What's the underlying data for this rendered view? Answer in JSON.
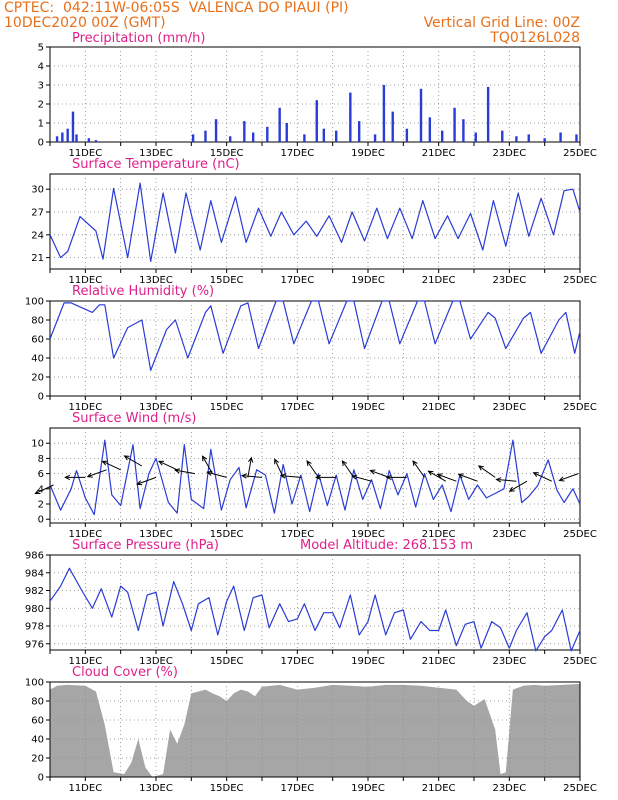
{
  "header": {
    "line1_left": "CPTEC:  042:11W-06:05S  VALENCA DO PIAUI (PI)",
    "line2_left": "10DEC2020 00Z (GMT)",
    "line2_right": "Vertical Grid Line: 00Z",
    "line3_right": "TQ0126L028"
  },
  "x_dates": [
    "11DEC",
    "13DEC",
    "15DEC",
    "17DEC",
    "19DEC",
    "21DEC",
    "23DEC",
    "25DEC"
  ],
  "x_range_days": [
    0,
    15
  ],
  "colors": {
    "header": "#e8701a",
    "title": "#e0208a",
    "line": "#2a3cd6",
    "bar": "#2a3cd6",
    "cloud": "#a6a6a6"
  },
  "chart_data": [
    {
      "type": "bar",
      "title": "Precipitation (mm/h)",
      "ylim": [
        0,
        5
      ],
      "yticks": [
        "0",
        "1",
        "2",
        "3",
        "4",
        "5"
      ],
      "events": [
        {
          "day": 0.2,
          "v": 0.3
        },
        {
          "day": 0.35,
          "v": 0.5
        },
        {
          "day": 0.5,
          "v": 0.7
        },
        {
          "day": 0.65,
          "v": 1.6
        },
        {
          "day": 0.75,
          "v": 0.4
        },
        {
          "day": 1.1,
          "v": 0.2
        },
        {
          "day": 1.3,
          "v": 0.1
        },
        {
          "day": 4.05,
          "v": 0.4
        },
        {
          "day": 4.4,
          "v": 0.6
        },
        {
          "day": 4.7,
          "v": 1.2
        },
        {
          "day": 5.1,
          "v": 0.3
        },
        {
          "day": 5.5,
          "v": 1.1
        },
        {
          "day": 5.75,
          "v": 0.5
        },
        {
          "day": 6.15,
          "v": 0.8
        },
        {
          "day": 6.5,
          "v": 1.8
        },
        {
          "day": 6.7,
          "v": 1.0
        },
        {
          "day": 7.2,
          "v": 0.4
        },
        {
          "day": 7.55,
          "v": 2.2
        },
        {
          "day": 7.75,
          "v": 0.7
        },
        {
          "day": 8.1,
          "v": 0.6
        },
        {
          "day": 8.5,
          "v": 2.6
        },
        {
          "day": 8.75,
          "v": 1.1
        },
        {
          "day": 9.2,
          "v": 0.4
        },
        {
          "day": 9.45,
          "v": 3.0
        },
        {
          "day": 9.7,
          "v": 1.6
        },
        {
          "day": 10.1,
          "v": 0.7
        },
        {
          "day": 10.5,
          "v": 2.8
        },
        {
          "day": 10.75,
          "v": 1.3
        },
        {
          "day": 11.1,
          "v": 0.6
        },
        {
          "day": 11.45,
          "v": 1.8
        },
        {
          "day": 11.7,
          "v": 1.2
        },
        {
          "day": 12.05,
          "v": 0.5
        },
        {
          "day": 12.4,
          "v": 2.9
        },
        {
          "day": 12.8,
          "v": 0.6
        },
        {
          "day": 13.2,
          "v": 0.3
        },
        {
          "day": 13.55,
          "v": 0.4
        },
        {
          "day": 14.0,
          "v": 0.2
        },
        {
          "day": 14.45,
          "v": 0.5
        },
        {
          "day": 14.9,
          "v": 0.4
        }
      ]
    },
    {
      "type": "line",
      "title": "Surface Temperature (nC)",
      "ylim": [
        19.5,
        32
      ],
      "yticks": [
        "21",
        "24",
        "27",
        "30"
      ],
      "ytick_values": [
        21,
        24,
        27,
        30
      ],
      "x": [
        0,
        0.3,
        0.5,
        0.85,
        1.3,
        1.5,
        1.8,
        2.2,
        2.55,
        2.85,
        3.2,
        3.55,
        3.85,
        4.25,
        4.55,
        4.85,
        5.25,
        5.55,
        5.9,
        6.25,
        6.55,
        6.9,
        7.25,
        7.55,
        7.9,
        8.25,
        8.55,
        8.9,
        9.25,
        9.55,
        9.9,
        10.25,
        10.55,
        10.9,
        11.25,
        11.55,
        11.9,
        12.25,
        12.55,
        12.9,
        13.25,
        13.55,
        13.9,
        14.25,
        14.55,
        14.8,
        15
      ],
      "y": [
        24,
        21,
        21.8,
        26.4,
        24.5,
        20.8,
        30.1,
        21,
        30.8,
        20.5,
        29.5,
        21.6,
        29.5,
        22,
        28.5,
        23,
        29,
        23,
        27.5,
        23.8,
        27,
        24,
        25.8,
        23.8,
        26.5,
        23,
        27,
        23.2,
        27.5,
        23.5,
        27.5,
        23.5,
        28.5,
        23.5,
        26.5,
        23.5,
        26.8,
        22,
        28.5,
        22.5,
        29.5,
        23.8,
        28.8,
        24,
        29.8,
        30,
        27
      ]
    },
    {
      "type": "line",
      "title": "Relative Humidity (%)",
      "ylim": [
        0,
        100
      ],
      "yticks": [
        "0",
        "20",
        "40",
        "60",
        "80",
        "100"
      ],
      "ytick_values": [
        0,
        20,
        40,
        60,
        80,
        100
      ],
      "x": [
        0,
        0.4,
        0.6,
        1.2,
        1.4,
        1.55,
        1.8,
        2.2,
        2.6,
        2.85,
        3.3,
        3.55,
        3.9,
        4.4,
        4.55,
        4.9,
        5.4,
        5.6,
        5.9,
        6.4,
        6.6,
        6.9,
        7.4,
        7.6,
        7.9,
        8.4,
        8.6,
        8.9,
        9.4,
        9.6,
        9.9,
        10.4,
        10.6,
        10.9,
        11.4,
        11.6,
        11.9,
        12.4,
        12.6,
        12.9,
        13.4,
        13.6,
        13.9,
        14.4,
        14.6,
        14.85,
        15
      ],
      "y": [
        60,
        98,
        98,
        88,
        96,
        96,
        40,
        72,
        80,
        27,
        70,
        80,
        40,
        88,
        95,
        45,
        95,
        98,
        50,
        100,
        100,
        55,
        100,
        100,
        55,
        100,
        100,
        50,
        100,
        100,
        55,
        100,
        100,
        55,
        100,
        100,
        60,
        88,
        82,
        50,
        82,
        88,
        45,
        80,
        88,
        45,
        68
      ]
    },
    {
      "type": "line",
      "title": "Surface Wind (m/s)",
      "ylim": [
        -0.5,
        12
      ],
      "yticks": [
        "0",
        "2",
        "4",
        "6",
        "8",
        "10"
      ],
      "ytick_values": [
        0,
        2,
        4,
        6,
        8,
        10
      ],
      "x": [
        0,
        0.3,
        0.6,
        0.75,
        1.0,
        1.25,
        1.55,
        1.75,
        2.0,
        2.35,
        2.55,
        2.8,
        3.0,
        3.35,
        3.6,
        3.8,
        4.0,
        4.35,
        4.55,
        4.85,
        5.1,
        5.35,
        5.55,
        5.85,
        6.1,
        6.35,
        6.6,
        6.85,
        7.1,
        7.35,
        7.6,
        7.85,
        8.1,
        8.35,
        8.6,
        8.85,
        9.1,
        9.35,
        9.6,
        9.85,
        10.1,
        10.35,
        10.6,
        10.85,
        11.1,
        11.35,
        11.6,
        11.85,
        12.1,
        12.35,
        12.6,
        12.85,
        13.1,
        13.35,
        13.55,
        13.8,
        14.1,
        14.35,
        14.55,
        14.8,
        15
      ],
      "y": [
        4.5,
        1.2,
        4,
        6.4,
        2.8,
        0.6,
        10.4,
        3.2,
        1.8,
        9.8,
        1.4,
        6,
        8,
        2.2,
        0.8,
        9.8,
        2.6,
        1.4,
        9.2,
        1.2,
        5.2,
        6.8,
        1.5,
        6.5,
        5.8,
        0.8,
        7.2,
        2.0,
        5.8,
        1.0,
        6.0,
        1.8,
        5.8,
        1.2,
        6.5,
        2.6,
        5.2,
        1.4,
        6.4,
        3.2,
        6.0,
        1.6,
        6.0,
        2.6,
        4.5,
        1.0,
        5.8,
        2.6,
        4.5,
        2.8,
        3.4,
        4.0,
        10.4,
        2.2,
        3.0,
        4.4,
        7.8,
        3.8,
        2.2,
        4.0,
        2.0
      ],
      "wind_vectors": [
        {
          "day": 0.1,
          "speed": 4.5,
          "dir_deg": 205
        },
        {
          "day": 1.0,
          "speed": 5.5,
          "dir_deg": 180
        },
        {
          "day": 1.6,
          "speed": 6.5,
          "dir_deg": 200
        },
        {
          "day": 2.0,
          "speed": 6.5,
          "dir_deg": 155
        },
        {
          "day": 2.6,
          "speed": 7,
          "dir_deg": 150
        },
        {
          "day": 3.0,
          "speed": 5.5,
          "dir_deg": 200
        },
        {
          "day": 3.6,
          "speed": 6.5,
          "dir_deg": 155
        },
        {
          "day": 4.1,
          "speed": 6,
          "dir_deg": 170
        },
        {
          "day": 4.6,
          "speed": 6,
          "dir_deg": 120
        },
        {
          "day": 5.0,
          "speed": 5.5,
          "dir_deg": 165
        },
        {
          "day": 5.6,
          "speed": 5.5,
          "dir_deg": 80
        },
        {
          "day": 6.0,
          "speed": 5.5,
          "dir_deg": 175
        },
        {
          "day": 6.6,
          "speed": 5.5,
          "dir_deg": 115
        },
        {
          "day": 7.1,
          "speed": 5.5,
          "dir_deg": 175
        },
        {
          "day": 7.6,
          "speed": 5.5,
          "dir_deg": 125
        },
        {
          "day": 8.1,
          "speed": 5.5,
          "dir_deg": 180
        },
        {
          "day": 8.6,
          "speed": 5.5,
          "dir_deg": 125
        },
        {
          "day": 9.1,
          "speed": 5,
          "dir_deg": 165
        },
        {
          "day": 9.6,
          "speed": 5.5,
          "dir_deg": 160
        },
        {
          "day": 10.1,
          "speed": 5.5,
          "dir_deg": 180
        },
        {
          "day": 10.6,
          "speed": 5.5,
          "dir_deg": 125
        },
        {
          "day": 11.2,
          "speed": 5,
          "dir_deg": 150
        },
        {
          "day": 11.5,
          "speed": 5,
          "dir_deg": 160
        },
        {
          "day": 12.1,
          "speed": 5,
          "dir_deg": 160
        },
        {
          "day": 12.6,
          "speed": 5.5,
          "dir_deg": 145
        },
        {
          "day": 13.2,
          "speed": 5,
          "dir_deg": 175
        },
        {
          "day": 13.5,
          "speed": 5,
          "dir_deg": 210
        },
        {
          "day": 14.2,
          "speed": 5,
          "dir_deg": 155
        },
        {
          "day": 14.95,
          "speed": 6,
          "dir_deg": 200
        }
      ]
    },
    {
      "type": "line",
      "title": "Surface Pressure (hPa)",
      "subtitle": "Model Altitude: 268.153 m",
      "ylim": [
        975.3,
        986
      ],
      "yticks": [
        "976",
        "978",
        "980",
        "982",
        "984",
        "986"
      ],
      "ytick_values": [
        976,
        978,
        980,
        982,
        984,
        986
      ],
      "x": [
        0,
        0.3,
        0.55,
        0.9,
        1.2,
        1.45,
        1.75,
        2.0,
        2.2,
        2.5,
        2.75,
        3.0,
        3.2,
        3.5,
        3.75,
        4.0,
        4.2,
        4.5,
        4.75,
        5.0,
        5.2,
        5.5,
        5.75,
        6.0,
        6.2,
        6.5,
        6.75,
        7.0,
        7.2,
        7.5,
        7.75,
        8.0,
        8.2,
        8.5,
        8.75,
        9.0,
        9.2,
        9.5,
        9.75,
        10.0,
        10.2,
        10.5,
        10.75,
        11.0,
        11.2,
        11.5,
        11.75,
        12.0,
        12.2,
        12.5,
        12.75,
        13.0,
        13.2,
        13.5,
        13.75,
        14.0,
        14.2,
        14.5,
        14.75,
        15
      ],
      "y": [
        980.8,
        982.5,
        984.5,
        982,
        980,
        982.2,
        979,
        982.5,
        981.8,
        977.5,
        981.5,
        981.8,
        978,
        983,
        980.5,
        977.5,
        980.5,
        981.2,
        977,
        980.8,
        982.5,
        977.5,
        981.2,
        981.5,
        977.8,
        980.5,
        978.5,
        978.8,
        980.5,
        977.5,
        979.5,
        979.5,
        977.8,
        981.5,
        977,
        978.5,
        981.5,
        977,
        979.5,
        979.8,
        976.5,
        978.5,
        977.5,
        977.5,
        979.8,
        975.8,
        978.2,
        978.5,
        975.5,
        978.5,
        977.8,
        975.5,
        977.5,
        979.5,
        975.2,
        976.8,
        977.5,
        979.8,
        975.2,
        977.5
      ]
    },
    {
      "type": "area",
      "title": "Cloud Cover (%)",
      "ylim": [
        0,
        100
      ],
      "yticks": [
        "0",
        "20",
        "40",
        "60",
        "80",
        "100"
      ],
      "ytick_values": [
        0,
        20,
        40,
        60,
        80,
        100
      ],
      "x": [
        0,
        0.2,
        0.5,
        1.0,
        1.3,
        1.55,
        1.8,
        2.1,
        2.3,
        2.5,
        2.7,
        2.9,
        3.2,
        3.4,
        3.6,
        3.8,
        4.0,
        4.2,
        4.4,
        4.6,
        4.8,
        5.0,
        5.2,
        5.4,
        5.6,
        5.8,
        6.0,
        6.5,
        7.0,
        7.5,
        8.0,
        8.5,
        9.0,
        9.5,
        10.0,
        10.5,
        11.0,
        11.5,
        11.8,
        12.0,
        12.3,
        12.6,
        12.75,
        12.9,
        13.1,
        13.4,
        13.7,
        14.0,
        14.5,
        15
      ],
      "y": [
        92,
        96,
        97,
        96,
        90,
        55,
        5,
        3,
        15,
        40,
        10,
        0,
        3,
        50,
        35,
        55,
        88,
        90,
        92,
        88,
        85,
        80,
        88,
        92,
        90,
        85,
        95,
        97,
        92,
        94,
        97,
        96,
        95,
        97,
        97,
        96,
        94,
        92,
        80,
        75,
        82,
        50,
        3,
        5,
        92,
        96,
        97,
        96,
        97,
        98
      ]
    }
  ]
}
